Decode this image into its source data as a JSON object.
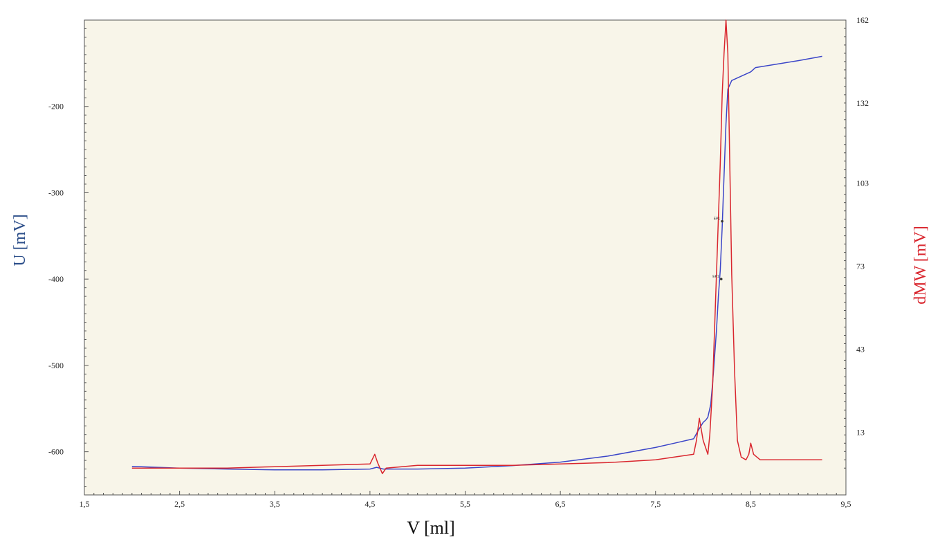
{
  "chart_data": {
    "type": "line",
    "xlabel": "V [ml]",
    "ylabel": "U [mV]",
    "ylabel_right": "dMW [mV]",
    "xlim": [
      1.5,
      9.5
    ],
    "ylim_left": [
      -650,
      -100
    ],
    "ylim_right": [
      -9.7,
      162
    ],
    "x_ticks": [
      "1,5",
      "2,5",
      "3,5",
      "4,5",
      "5,5",
      "6,5",
      "7,5",
      "8,5",
      "9,5"
    ],
    "x_tick_values": [
      1.5,
      2.5,
      3.5,
      4.5,
      5.5,
      6.5,
      7.5,
      8.5,
      9.5
    ],
    "y_left_ticks": [
      "-200",
      "-300",
      "-400",
      "-500",
      "-600"
    ],
    "y_left_tick_values": [
      -200,
      -300,
      -400,
      -500,
      -600
    ],
    "y_right_ticks": [
      "162",
      "132",
      "103",
      "73",
      "43",
      "13"
    ],
    "y_right_tick_values": [
      162,
      132,
      103,
      73,
      43,
      13
    ],
    "grid": false,
    "background": "#f8f5e9",
    "series": [
      {
        "axis": "left",
        "color": "#3b45c8",
        "x": [
          2.0,
          2.5,
          3.0,
          3.5,
          4.0,
          4.5,
          4.57,
          4.64,
          5.0,
          5.5,
          6.0,
          6.5,
          7.0,
          7.5,
          7.7,
          7.9,
          7.95,
          8.0,
          8.03,
          8.05,
          8.08,
          8.1,
          8.12,
          8.14,
          8.16,
          8.18,
          8.2,
          8.22,
          8.24,
          8.26,
          8.3,
          8.4,
          8.5,
          8.55,
          9.0,
          9.25
        ],
        "y": [
          -617,
          -619,
          -620,
          -621,
          -621,
          -620,
          -618,
          -620,
          -620,
          -619,
          -616,
          -612,
          -605,
          -595,
          -590,
          -585,
          -575,
          -566,
          -563,
          -560,
          -545,
          -520,
          -490,
          -460,
          -420,
          -390,
          -340,
          -280,
          -220,
          -180,
          -170,
          -165,
          -160,
          -155,
          -147,
          -142
        ]
      },
      {
        "axis": "right",
        "color": "#d9262e",
        "x": [
          2.0,
          2.5,
          3.0,
          3.5,
          4.0,
          4.5,
          4.55,
          4.58,
          4.63,
          4.67,
          5.0,
          5.5,
          6.0,
          6.5,
          7.0,
          7.5,
          7.9,
          7.93,
          7.96,
          8.0,
          8.05,
          8.07,
          8.1,
          8.15,
          8.18,
          8.2,
          8.22,
          8.24,
          8.26,
          8.28,
          8.3,
          8.33,
          8.36,
          8.4,
          8.45,
          8.48,
          8.5,
          8.53,
          8.6,
          8.9,
          9.25
        ],
        "y": [
          0,
          0,
          0,
          0.5,
          1,
          1.5,
          5,
          2,
          -2,
          0,
          1,
          1,
          1,
          1.5,
          2,
          3,
          5,
          10,
          18,
          10,
          5,
          12,
          30,
          80,
          110,
          135,
          150,
          162,
          150,
          110,
          70,
          35,
          10,
          4,
          3,
          5,
          9,
          5,
          3,
          3,
          3
        ]
      }
    ],
    "annotations": [
      {
        "text": "EP1",
        "x": 8.2,
        "y": -333,
        "axis": "left"
      },
      {
        "text": "EP1",
        "x": 8.19,
        "y": -400,
        "axis": "left"
      }
    ]
  }
}
